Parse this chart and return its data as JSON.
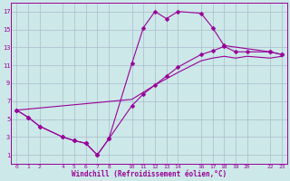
{
  "xlabel": "Windchill (Refroidissement éolien,°C)",
  "bg_color": "#cce8e8",
  "grid_color": "#aabbcc",
  "line_color": "#990099",
  "xlim": [
    -0.5,
    23.5
  ],
  "ylim": [
    0,
    18
  ],
  "xticks": [
    0,
    1,
    2,
    4,
    5,
    6,
    7,
    8,
    10,
    11,
    12,
    13,
    14,
    16,
    17,
    18,
    19,
    20,
    22,
    23
  ],
  "yticks": [
    1,
    3,
    5,
    7,
    9,
    11,
    13,
    15,
    17
  ],
  "line1_x": [
    0,
    1,
    2,
    4,
    5,
    6,
    7,
    8,
    10,
    11,
    12,
    13,
    14,
    16,
    17,
    18,
    22,
    23
  ],
  "line1_y": [
    6.0,
    5.2,
    4.2,
    3.0,
    2.6,
    2.3,
    1.0,
    2.8,
    11.2,
    15.2,
    17.0,
    16.2,
    17.0,
    16.8,
    15.2,
    13.2,
    12.5,
    12.2
  ],
  "line2_x": [
    0,
    1,
    2,
    4,
    5,
    6,
    7,
    8,
    10,
    11,
    12,
    13,
    14,
    16,
    17,
    18,
    19,
    20,
    22,
    23
  ],
  "line2_y": [
    6.0,
    5.2,
    4.2,
    3.0,
    2.6,
    2.3,
    1.0,
    2.8,
    6.5,
    7.8,
    8.8,
    9.8,
    10.8,
    12.2,
    12.6,
    13.1,
    12.5,
    12.5,
    12.5,
    12.2
  ],
  "line3_x": [
    0,
    10,
    11,
    12,
    13,
    14,
    16,
    17,
    18,
    19,
    20,
    22,
    23
  ],
  "line3_y": [
    6.0,
    7.2,
    8.0,
    8.8,
    9.5,
    10.2,
    11.5,
    11.8,
    12.0,
    11.8,
    12.0,
    11.8,
    12.0
  ]
}
